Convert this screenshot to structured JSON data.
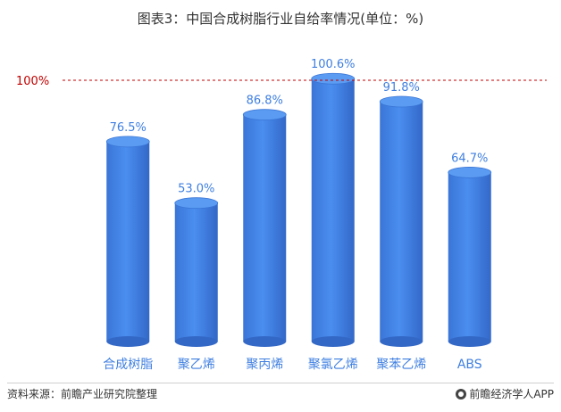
{
  "chart_data": {
    "type": "bar",
    "title": "图表3：中国合成树脂行业自给率情况(单位：%)",
    "categories": [
      "合成树脂",
      "聚乙烯",
      "聚丙烯",
      "聚氯乙烯",
      "聚苯乙烯",
      "ABS"
    ],
    "values": [
      76.5,
      53.0,
      86.8,
      100.6,
      91.8,
      64.7
    ],
    "value_labels": [
      "76.5%",
      "53.0%",
      "86.8%",
      "100.6%",
      "91.8%",
      "64.7%"
    ],
    "reference_line": {
      "value": 100,
      "label": "100%",
      "color": "#c00000"
    },
    "ylim": [
      0,
      110
    ],
    "grid": false,
    "bar_color": "#3f7fe0",
    "label_color": "#3f7fe0"
  },
  "footer": {
    "source": "资料来源：前瞻产业研究院整理",
    "brand": "前瞻经济学人APP"
  }
}
